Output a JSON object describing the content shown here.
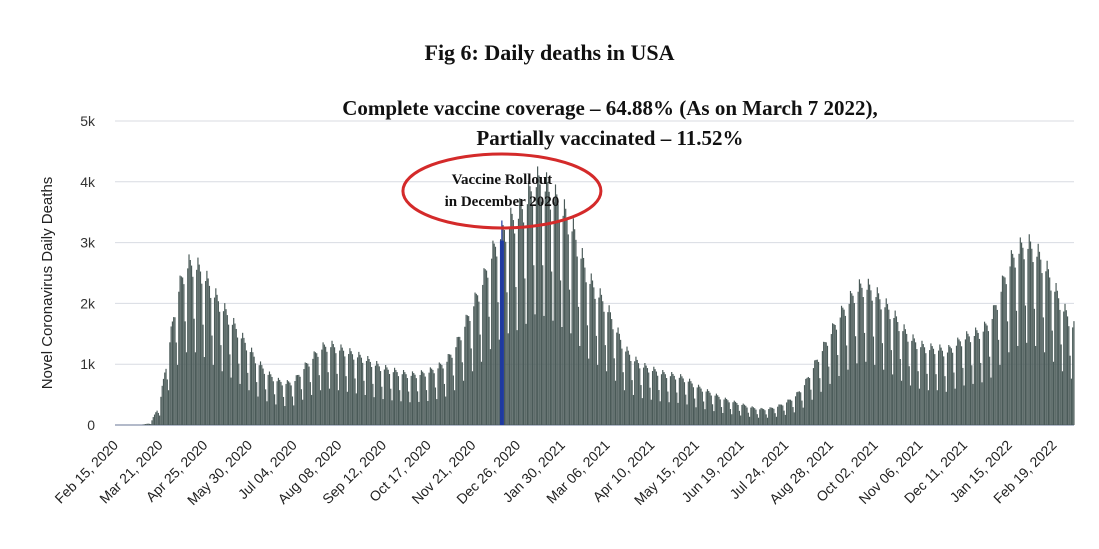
{
  "chart_data": {
    "type": "bar",
    "title": "Fig 6: Daily deaths in USA",
    "subtitle_line1": "Complete vaccine coverage – 64.88% (As on March 7 2022),",
    "subtitle_line2": "Partially vaccinated – 11.52%",
    "ylabel": "Novel Coronavirus Daily Deaths",
    "xlabel": "",
    "ylim": [
      0,
      5000
    ],
    "y_ticks": [
      {
        "value": 0,
        "label": "0"
      },
      {
        "value": 1000,
        "label": "1k"
      },
      {
        "value": 2000,
        "label": "2k"
      },
      {
        "value": 3000,
        "label": "3k"
      },
      {
        "value": 4000,
        "label": "4k"
      },
      {
        "value": 5000,
        "label": "5k"
      }
    ],
    "x_range": [
      "2020-02-15",
      "2022-03-07"
    ],
    "x_tick_labels": [
      "Feb 15, 2020",
      "Mar 21, 2020",
      "Apr 25, 2020",
      "May 30, 2020",
      "Jul 04, 2020",
      "Aug 08, 2020",
      "Sep 12, 2020",
      "Oct 17, 2020",
      "Nov 21, 2020",
      "Dec 26, 2020",
      "Jan 30, 2021",
      "Mar 06, 2021",
      "Apr 10, 2021",
      "May 15, 2021",
      "Jun 19, 2021",
      "Jul 24, 2021",
      "Aug 28, 2021",
      "Oct 02, 2021",
      "Nov 06, 2021",
      "Dec 11, 2021",
      "Jan 15, 2022",
      "Feb 19, 2022"
    ],
    "grid": true,
    "bar_color": "#4a5a58",
    "highlight_color": "#1f3aa0",
    "annotation": {
      "line1": "Vaccine Rollout",
      "line2": "in December 2020",
      "date": "2020-12-14",
      "color": "#d42a2a"
    },
    "daily_deaths_series": [
      {
        "date": "2020-02-15",
        "value": 0
      },
      {
        "date": "2020-03-07",
        "value": 0
      },
      {
        "date": "2020-03-14",
        "value": 30
      },
      {
        "date": "2020-03-21",
        "value": 300
      },
      {
        "date": "2020-03-28",
        "value": 1100
      },
      {
        "date": "2020-04-04",
        "value": 1900
      },
      {
        "date": "2020-04-11",
        "value": 2300
      },
      {
        "date": "2020-04-18",
        "value": 2300
      },
      {
        "date": "2020-04-25",
        "value": 2150
      },
      {
        "date": "2020-05-02",
        "value": 1900
      },
      {
        "date": "2020-05-09",
        "value": 1700
      },
      {
        "date": "2020-05-16",
        "value": 1500
      },
      {
        "date": "2020-05-23",
        "value": 1300
      },
      {
        "date": "2020-05-30",
        "value": 1100
      },
      {
        "date": "2020-06-06",
        "value": 900
      },
      {
        "date": "2020-06-13",
        "value": 750
      },
      {
        "date": "2020-06-20",
        "value": 650
      },
      {
        "date": "2020-06-27",
        "value": 600
      },
      {
        "date": "2020-07-04",
        "value": 620
      },
      {
        "date": "2020-07-11",
        "value": 800
      },
      {
        "date": "2020-07-18",
        "value": 950
      },
      {
        "date": "2020-07-25",
        "value": 1100
      },
      {
        "date": "2020-08-01",
        "value": 1150
      },
      {
        "date": "2020-08-08",
        "value": 1100
      },
      {
        "date": "2020-08-15",
        "value": 1050
      },
      {
        "date": "2020-08-22",
        "value": 1000
      },
      {
        "date": "2020-08-29",
        "value": 950
      },
      {
        "date": "2020-09-05",
        "value": 880
      },
      {
        "date": "2020-09-12",
        "value": 820
      },
      {
        "date": "2020-09-19",
        "value": 780
      },
      {
        "date": "2020-09-26",
        "value": 750
      },
      {
        "date": "2020-10-03",
        "value": 720
      },
      {
        "date": "2020-10-10",
        "value": 730
      },
      {
        "date": "2020-10-17",
        "value": 760
      },
      {
        "date": "2020-10-24",
        "value": 820
      },
      {
        "date": "2020-10-31",
        "value": 900
      },
      {
        "date": "2020-11-07",
        "value": 1100
      },
      {
        "date": "2020-11-14",
        "value": 1400
      },
      {
        "date": "2020-11-21",
        "value": 1700
      },
      {
        "date": "2020-11-28",
        "value": 2000
      },
      {
        "date": "2020-12-05",
        "value": 2400
      },
      {
        "date": "2020-12-12",
        "value": 2700
      },
      {
        "date": "2020-12-19",
        "value": 2900
      },
      {
        "date": "2020-12-26",
        "value": 3000
      },
      {
        "date": "2021-01-02",
        "value": 3200
      },
      {
        "date": "2021-01-09",
        "value": 3500
      },
      {
        "date": "2021-01-16",
        "value": 3450
      },
      {
        "date": "2021-01-23",
        "value": 3300
      },
      {
        "date": "2021-01-30",
        "value": 3100
      },
      {
        "date": "2021-02-06",
        "value": 2900
      },
      {
        "date": "2021-02-13",
        "value": 2500
      },
      {
        "date": "2021-02-20",
        "value": 2100
      },
      {
        "date": "2021-02-27",
        "value": 1900
      },
      {
        "date": "2021-03-06",
        "value": 1700
      },
      {
        "date": "2021-03-13",
        "value": 1400
      },
      {
        "date": "2021-03-20",
        "value": 1100
      },
      {
        "date": "2021-03-27",
        "value": 950
      },
      {
        "date": "2021-04-03",
        "value": 850
      },
      {
        "date": "2021-04-10",
        "value": 800
      },
      {
        "date": "2021-04-17",
        "value": 750
      },
      {
        "date": "2021-04-24",
        "value": 720
      },
      {
        "date": "2021-05-01",
        "value": 700
      },
      {
        "date": "2021-05-08",
        "value": 650
      },
      {
        "date": "2021-05-15",
        "value": 560
      },
      {
        "date": "2021-05-22",
        "value": 500
      },
      {
        "date": "2021-05-29",
        "value": 440
      },
      {
        "date": "2021-06-05",
        "value": 380
      },
      {
        "date": "2021-06-12",
        "value": 340
      },
      {
        "date": "2021-06-19",
        "value": 300
      },
      {
        "date": "2021-06-26",
        "value": 260
      },
      {
        "date": "2021-07-03",
        "value": 230
      },
      {
        "date": "2021-07-10",
        "value": 230
      },
      {
        "date": "2021-07-17",
        "value": 260
      },
      {
        "date": "2021-07-24",
        "value": 320
      },
      {
        "date": "2021-07-31",
        "value": 400
      },
      {
        "date": "2021-08-07",
        "value": 550
      },
      {
        "date": "2021-08-14",
        "value": 800
      },
      {
        "date": "2021-08-21",
        "value": 1050
      },
      {
        "date": "2021-08-28",
        "value": 1300
      },
      {
        "date": "2021-09-04",
        "value": 1550
      },
      {
        "date": "2021-09-11",
        "value": 1750
      },
      {
        "date": "2021-09-18",
        "value": 1950
      },
      {
        "date": "2021-09-25",
        "value": 2000
      },
      {
        "date": "2021-10-02",
        "value": 1900
      },
      {
        "date": "2021-10-09",
        "value": 1750
      },
      {
        "date": "2021-10-16",
        "value": 1600
      },
      {
        "date": "2021-10-23",
        "value": 1400
      },
      {
        "date": "2021-10-30",
        "value": 1250
      },
      {
        "date": "2021-11-06",
        "value": 1150
      },
      {
        "date": "2021-11-13",
        "value": 1100
      },
      {
        "date": "2021-11-20",
        "value": 1100
      },
      {
        "date": "2021-11-27",
        "value": 1050
      },
      {
        "date": "2021-12-04",
        "value": 1150
      },
      {
        "date": "2021-12-11",
        "value": 1250
      },
      {
        "date": "2021-12-18",
        "value": 1300
      },
      {
        "date": "2021-12-25",
        "value": 1350
      },
      {
        "date": "2022-01-01",
        "value": 1500
      },
      {
        "date": "2022-01-08",
        "value": 1900
      },
      {
        "date": "2022-01-15",
        "value": 2300
      },
      {
        "date": "2022-01-22",
        "value": 2500
      },
      {
        "date": "2022-01-29",
        "value": 2600
      },
      {
        "date": "2022-02-05",
        "value": 2500
      },
      {
        "date": "2022-02-12",
        "value": 2300
      },
      {
        "date": "2022-02-19",
        "value": 2000
      },
      {
        "date": "2022-02-26",
        "value": 1700
      },
      {
        "date": "2022-03-07",
        "value": 1400
      }
    ]
  }
}
